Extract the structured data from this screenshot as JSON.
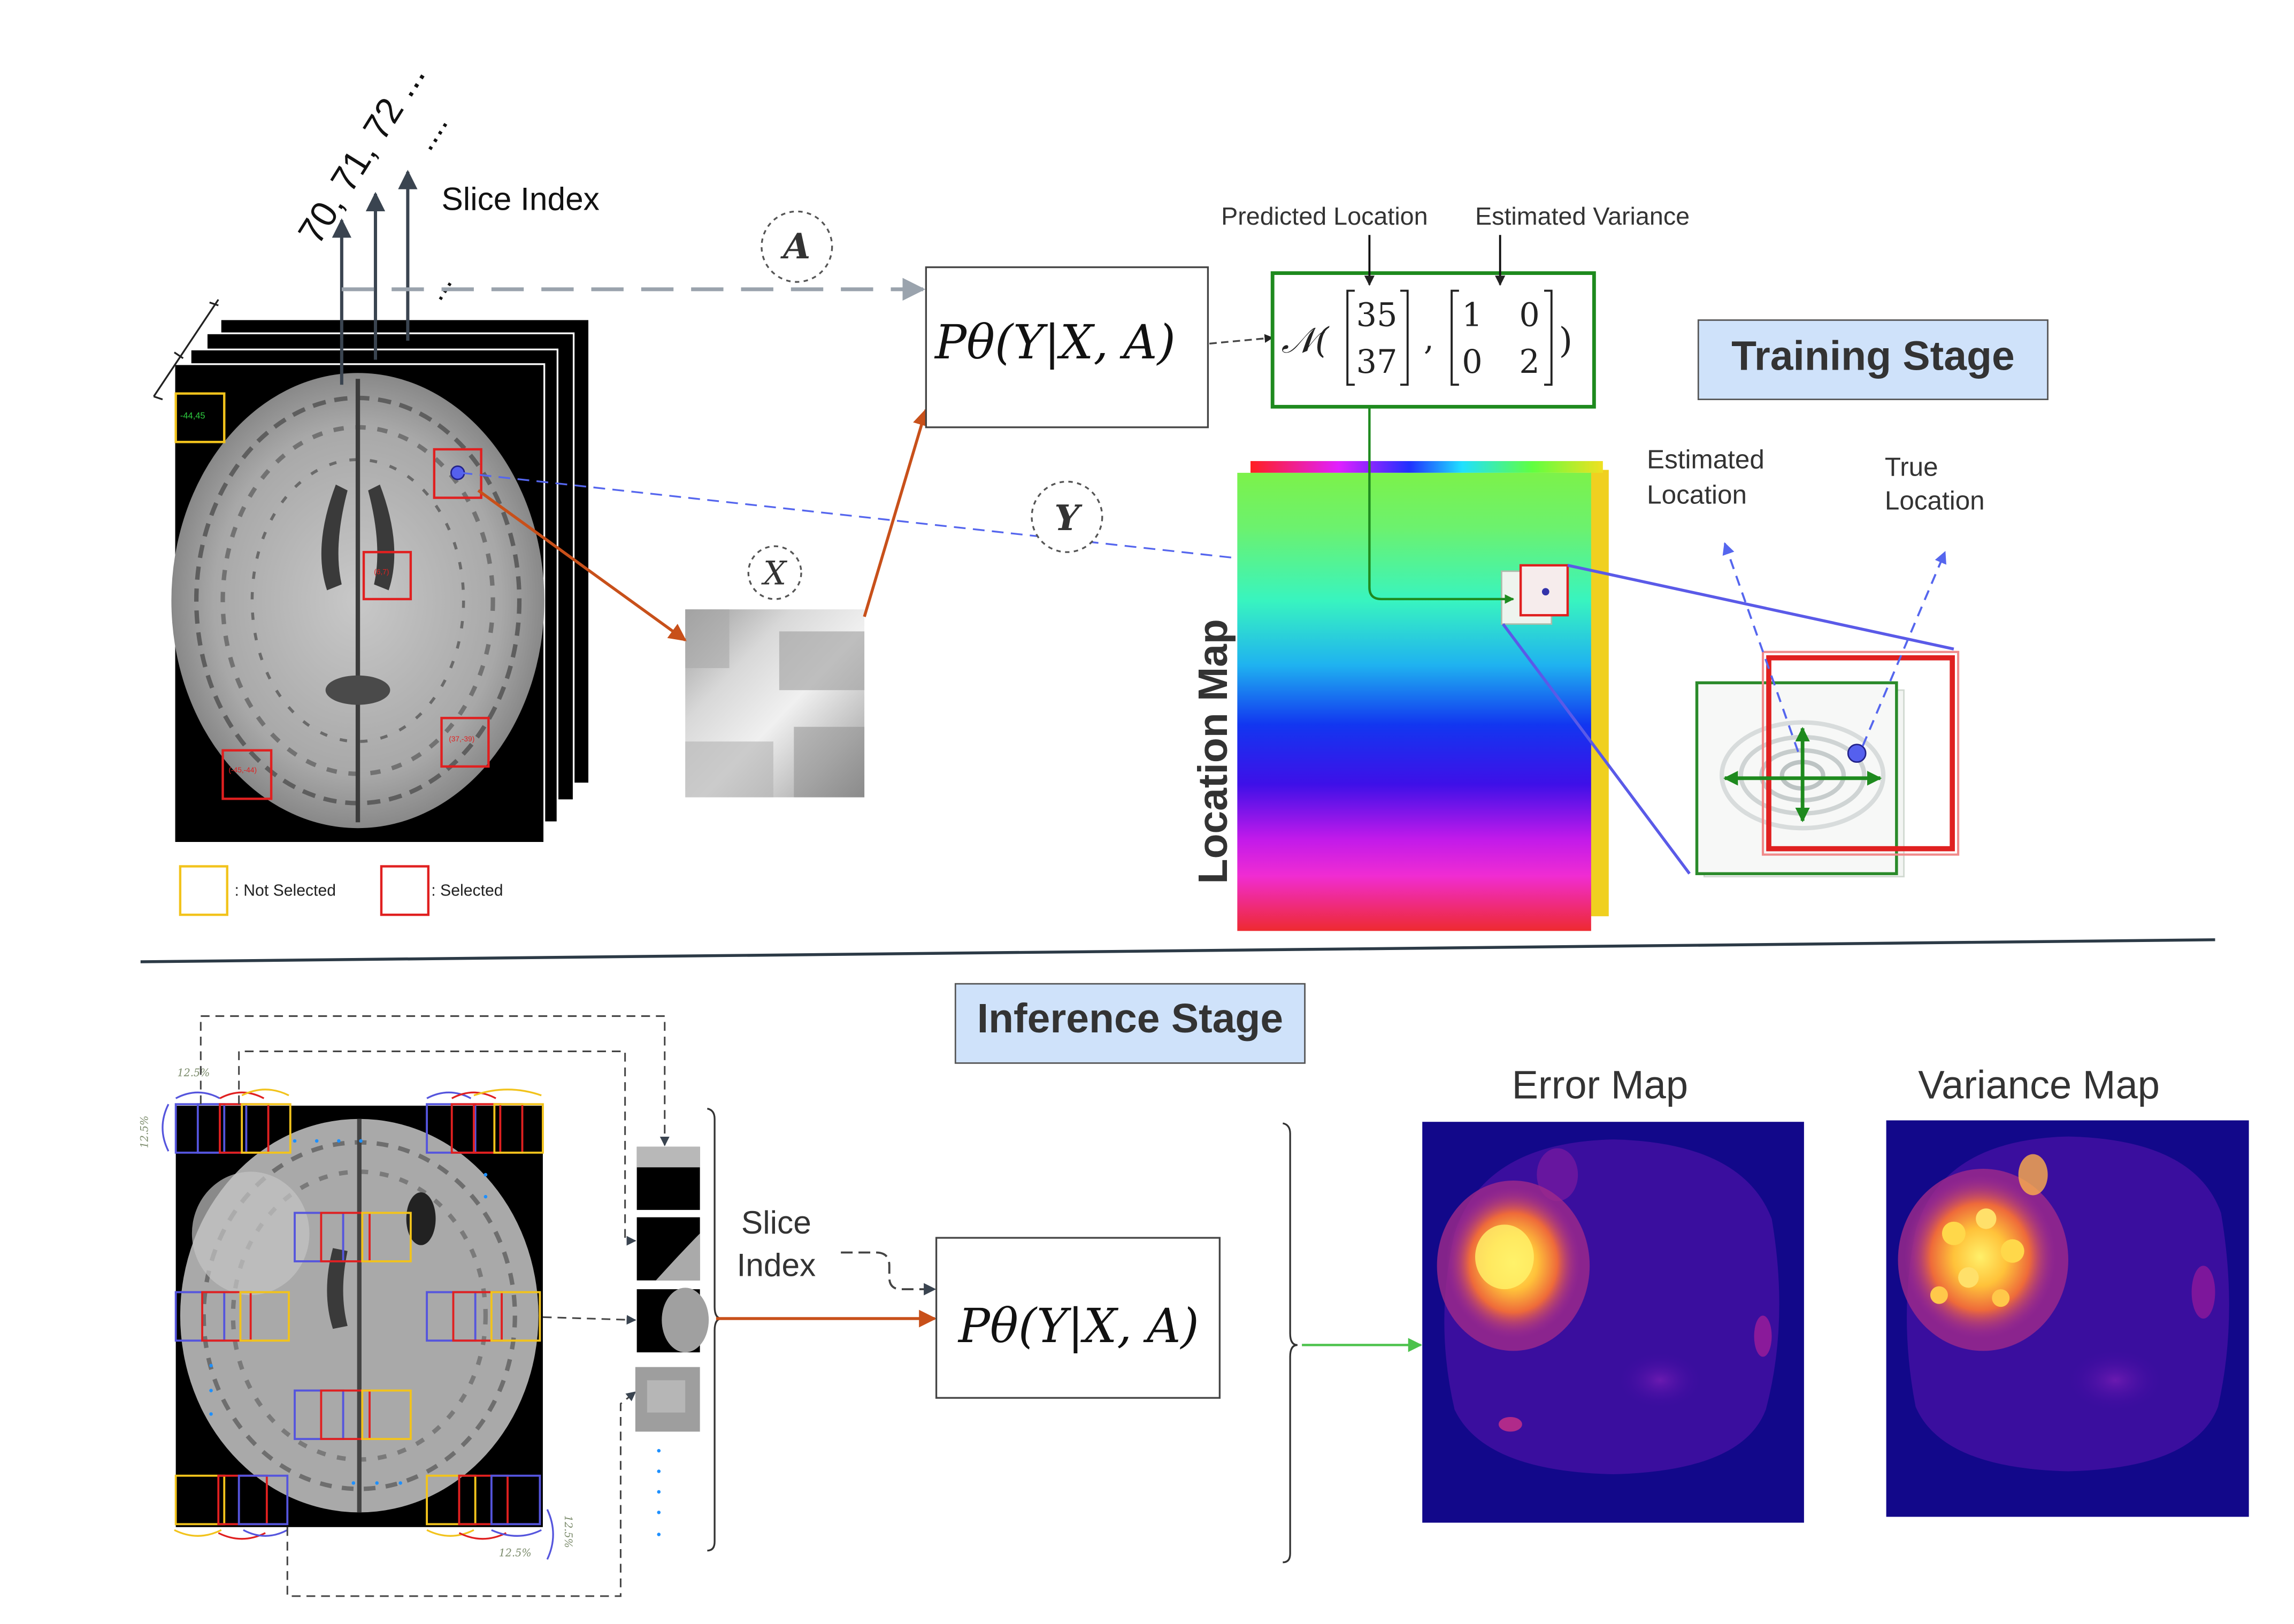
{
  "training": {
    "stage_label": "Training Stage",
    "slice_index_label": "Slice Index",
    "slice_numbers": "70, 71, 72 ...",
    "slice_dots": "....",
    "dots_small": "...",
    "variable_a": "A",
    "variable_x": "X",
    "variable_y": "Y",
    "model_formula": "Pθ(Y|X, A)",
    "predicted_location_label": "Predicted Location",
    "estimated_variance_label": "Estimated Variance",
    "gaussian": {
      "symbol": "𝒩(",
      "mean_top": "35",
      "mean_bottom": "37",
      "comma": ",",
      "cov_tl": "1",
      "cov_tr": "0",
      "cov_bl": "0",
      "cov_br": "2",
      "close": ")"
    },
    "location_map_label": "Location Map",
    "estimated_location_label": [
      "Estimated",
      "Location"
    ],
    "true_location_label": [
      "True",
      "Location"
    ],
    "patch_coords": [
      "-44,45",
      "(6,7)",
      "(37,-39)",
      "(-45,-44)"
    ],
    "legend": {
      "not_selected": ": Not Selected",
      "selected": ": Selected"
    }
  },
  "inference": {
    "stage_label": "Inference Stage",
    "slice_index_label": [
      "Slice",
      "Index"
    ],
    "model_formula": "Pθ(Y|X, A)",
    "overlap_pct": "12.5%",
    "error_map_label": "Error Map",
    "variance_map_label": "Variance Map"
  },
  "colors": {
    "stage_box_fill": "#cfe2fa",
    "selected_patch": "#e02020",
    "not_selected_patch": "#f2c31c",
    "arrow_orange": "#c8501a",
    "gaussian_green": "#1e8a1e",
    "dashed_blue": "#5566ee",
    "heatmap_background": "#12088a"
  }
}
